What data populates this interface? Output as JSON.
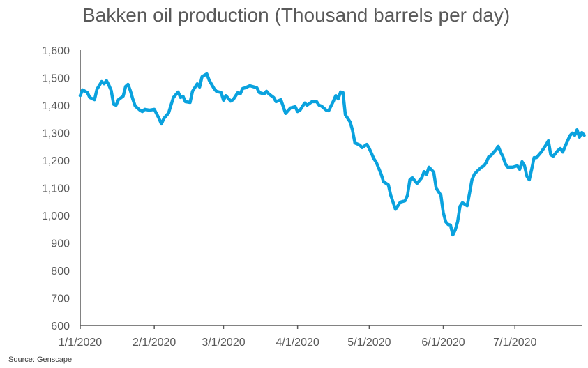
{
  "chart_data": {
    "type": "line",
    "title": "Bakken oil production (Thousand barrels per day)",
    "source": "Source: Genscape",
    "xlabel": "",
    "ylabel": "",
    "ylim": [
      600,
      1600
    ],
    "xlim": [
      "2020-01-01",
      "2020-07-31"
    ],
    "y_ticks": [
      "600",
      "700",
      "800",
      "900",
      "1,000",
      "1,100",
      "1,200",
      "1,300",
      "1,400",
      "1,500",
      "1,600"
    ],
    "y_tick_values": [
      600,
      700,
      800,
      900,
      1000,
      1100,
      1200,
      1300,
      1400,
      1500,
      1600
    ],
    "x_ticks": [
      "1/1/2020",
      "2/1/2020",
      "3/1/2020",
      "4/1/2020",
      "5/1/2020",
      "6/1/2020",
      "7/1/2020"
    ],
    "x_tick_dates": [
      "2020-01-01",
      "2020-02-01",
      "2020-03-01",
      "2020-04-01",
      "2020-05-01",
      "2020-06-01",
      "2020-07-01"
    ],
    "grid": false,
    "legend": "none",
    "line_color": "#0AA2DE",
    "axis_color": "#595959",
    "series": [
      {
        "x": [
          "2020-01-01",
          "2020-01-02",
          "2020-01-04",
          "2020-01-05",
          "2020-01-07",
          "2020-01-08",
          "2020-01-10",
          "2020-01-11",
          "2020-01-12",
          "2020-01-13",
          "2020-01-14",
          "2020-01-15",
          "2020-01-16",
          "2020-01-17",
          "2020-01-19",
          "2020-01-20",
          "2020-01-21",
          "2020-01-22",
          "2020-01-23",
          "2020-01-24",
          "2020-01-26",
          "2020-01-27",
          "2020-01-28",
          "2020-01-30",
          "2020-02-01",
          "2020-02-03",
          "2020-02-04",
          "2020-02-05",
          "2020-02-07",
          "2020-02-08",
          "2020-02-09",
          "2020-02-11",
          "2020-02-12",
          "2020-02-13",
          "2020-02-14",
          "2020-02-16",
          "2020-02-17",
          "2020-02-19",
          "2020-02-20",
          "2020-02-21",
          "2020-02-23",
          "2020-02-24",
          "2020-02-26",
          "2020-02-27",
          "2020-02-29",
          "2020-03-01",
          "2020-03-02",
          "2020-03-04",
          "2020-03-05",
          "2020-03-07",
          "2020-03-08",
          "2020-03-09",
          "2020-03-10",
          "2020-03-12",
          "2020-03-14",
          "2020-03-15",
          "2020-03-16",
          "2020-03-18",
          "2020-03-19",
          "2020-03-20",
          "2020-03-22",
          "2020-03-23",
          "2020-03-25",
          "2020-03-26",
          "2020-03-27",
          "2020-03-29",
          "2020-03-31",
          "2020-04-01",
          "2020-04-02",
          "2020-04-04",
          "2020-04-05",
          "2020-04-07",
          "2020-04-09",
          "2020-04-10",
          "2020-04-11",
          "2020-04-13",
          "2020-04-14",
          "2020-04-16",
          "2020-04-17",
          "2020-04-18",
          "2020-04-19",
          "2020-04-20",
          "2020-04-21",
          "2020-04-23",
          "2020-04-24",
          "2020-04-25",
          "2020-04-27",
          "2020-04-28",
          "2020-04-30",
          "2020-05-01",
          "2020-05-03",
          "2020-05-04",
          "2020-05-06",
          "2020-05-07",
          "2020-05-09",
          "2020-05-10",
          "2020-05-12",
          "2020-05-13",
          "2020-05-14",
          "2020-05-16",
          "2020-05-17",
          "2020-05-18",
          "2020-05-19",
          "2020-05-21",
          "2020-05-23",
          "2020-05-24",
          "2020-05-25",
          "2020-05-26",
          "2020-05-28",
          "2020-05-29",
          "2020-05-31",
          "2020-06-01",
          "2020-06-02",
          "2020-06-03",
          "2020-06-04",
          "2020-06-05",
          "2020-06-06",
          "2020-06-07",
          "2020-06-08",
          "2020-06-09",
          "2020-06-11",
          "2020-06-12",
          "2020-06-13",
          "2020-06-14",
          "2020-06-15",
          "2020-06-17",
          "2020-06-18",
          "2020-06-19",
          "2020-06-20",
          "2020-06-21",
          "2020-06-23",
          "2020-06-24",
          "2020-06-25",
          "2020-06-26",
          "2020-06-27",
          "2020-06-28",
          "2020-06-30",
          "2020-07-02",
          "2020-07-03",
          "2020-07-04",
          "2020-07-05",
          "2020-07-06",
          "2020-07-07",
          "2020-07-08",
          "2020-07-09",
          "2020-07-10",
          "2020-07-12",
          "2020-07-14",
          "2020-07-15",
          "2020-07-16",
          "2020-07-17",
          "2020-07-19",
          "2020-07-20",
          "2020-07-21",
          "2020-07-22",
          "2020-07-24",
          "2020-07-25",
          "2020-07-26",
          "2020-07-27",
          "2020-07-28",
          "2020-07-29",
          "2020-07-30"
        ],
        "y": [
          1435,
          1456,
          1446,
          1428,
          1420,
          1458,
          1486,
          1478,
          1489,
          1473,
          1453,
          1403,
          1400,
          1420,
          1433,
          1468,
          1476,
          1453,
          1423,
          1397,
          1382,
          1377,
          1385,
          1382,
          1385,
          1352,
          1332,
          1352,
          1372,
          1400,
          1428,
          1448,
          1428,
          1433,
          1413,
          1410,
          1451,
          1478,
          1466,
          1504,
          1514,
          1491,
          1461,
          1451,
          1446,
          1418,
          1435,
          1415,
          1420,
          1446,
          1441,
          1461,
          1463,
          1471,
          1466,
          1463,
          1446,
          1441,
          1451,
          1441,
          1428,
          1413,
          1420,
          1395,
          1370,
          1390,
          1395,
          1377,
          1382,
          1408,
          1400,
          1413,
          1413,
          1400,
          1397,
          1382,
          1380,
          1415,
          1435,
          1423,
          1448,
          1446,
          1365,
          1339,
          1309,
          1263,
          1256,
          1246,
          1258,
          1243,
          1205,
          1192,
          1149,
          1122,
          1111,
          1073,
          1022,
          1035,
          1048,
          1053,
          1073,
          1129,
          1137,
          1116,
          1137,
          1159,
          1149,
          1175,
          1157,
          1099,
          1073,
          1010,
          977,
          967,
          965,
          929,
          947,
          977,
          1033,
          1046,
          1035,
          1081,
          1129,
          1149,
          1159,
          1175,
          1180,
          1192,
          1213,
          1218,
          1238,
          1251,
          1230,
          1213,
          1187,
          1175,
          1175,
          1180,
          1167,
          1195,
          1180,
          1142,
          1129,
          1167,
          1210,
          1210,
          1230,
          1256,
          1271,
          1220,
          1215,
          1236,
          1243,
          1230,
          1251,
          1289,
          1299,
          1291,
          1311,
          1284,
          1301,
          1291
        ]
      }
    ]
  }
}
